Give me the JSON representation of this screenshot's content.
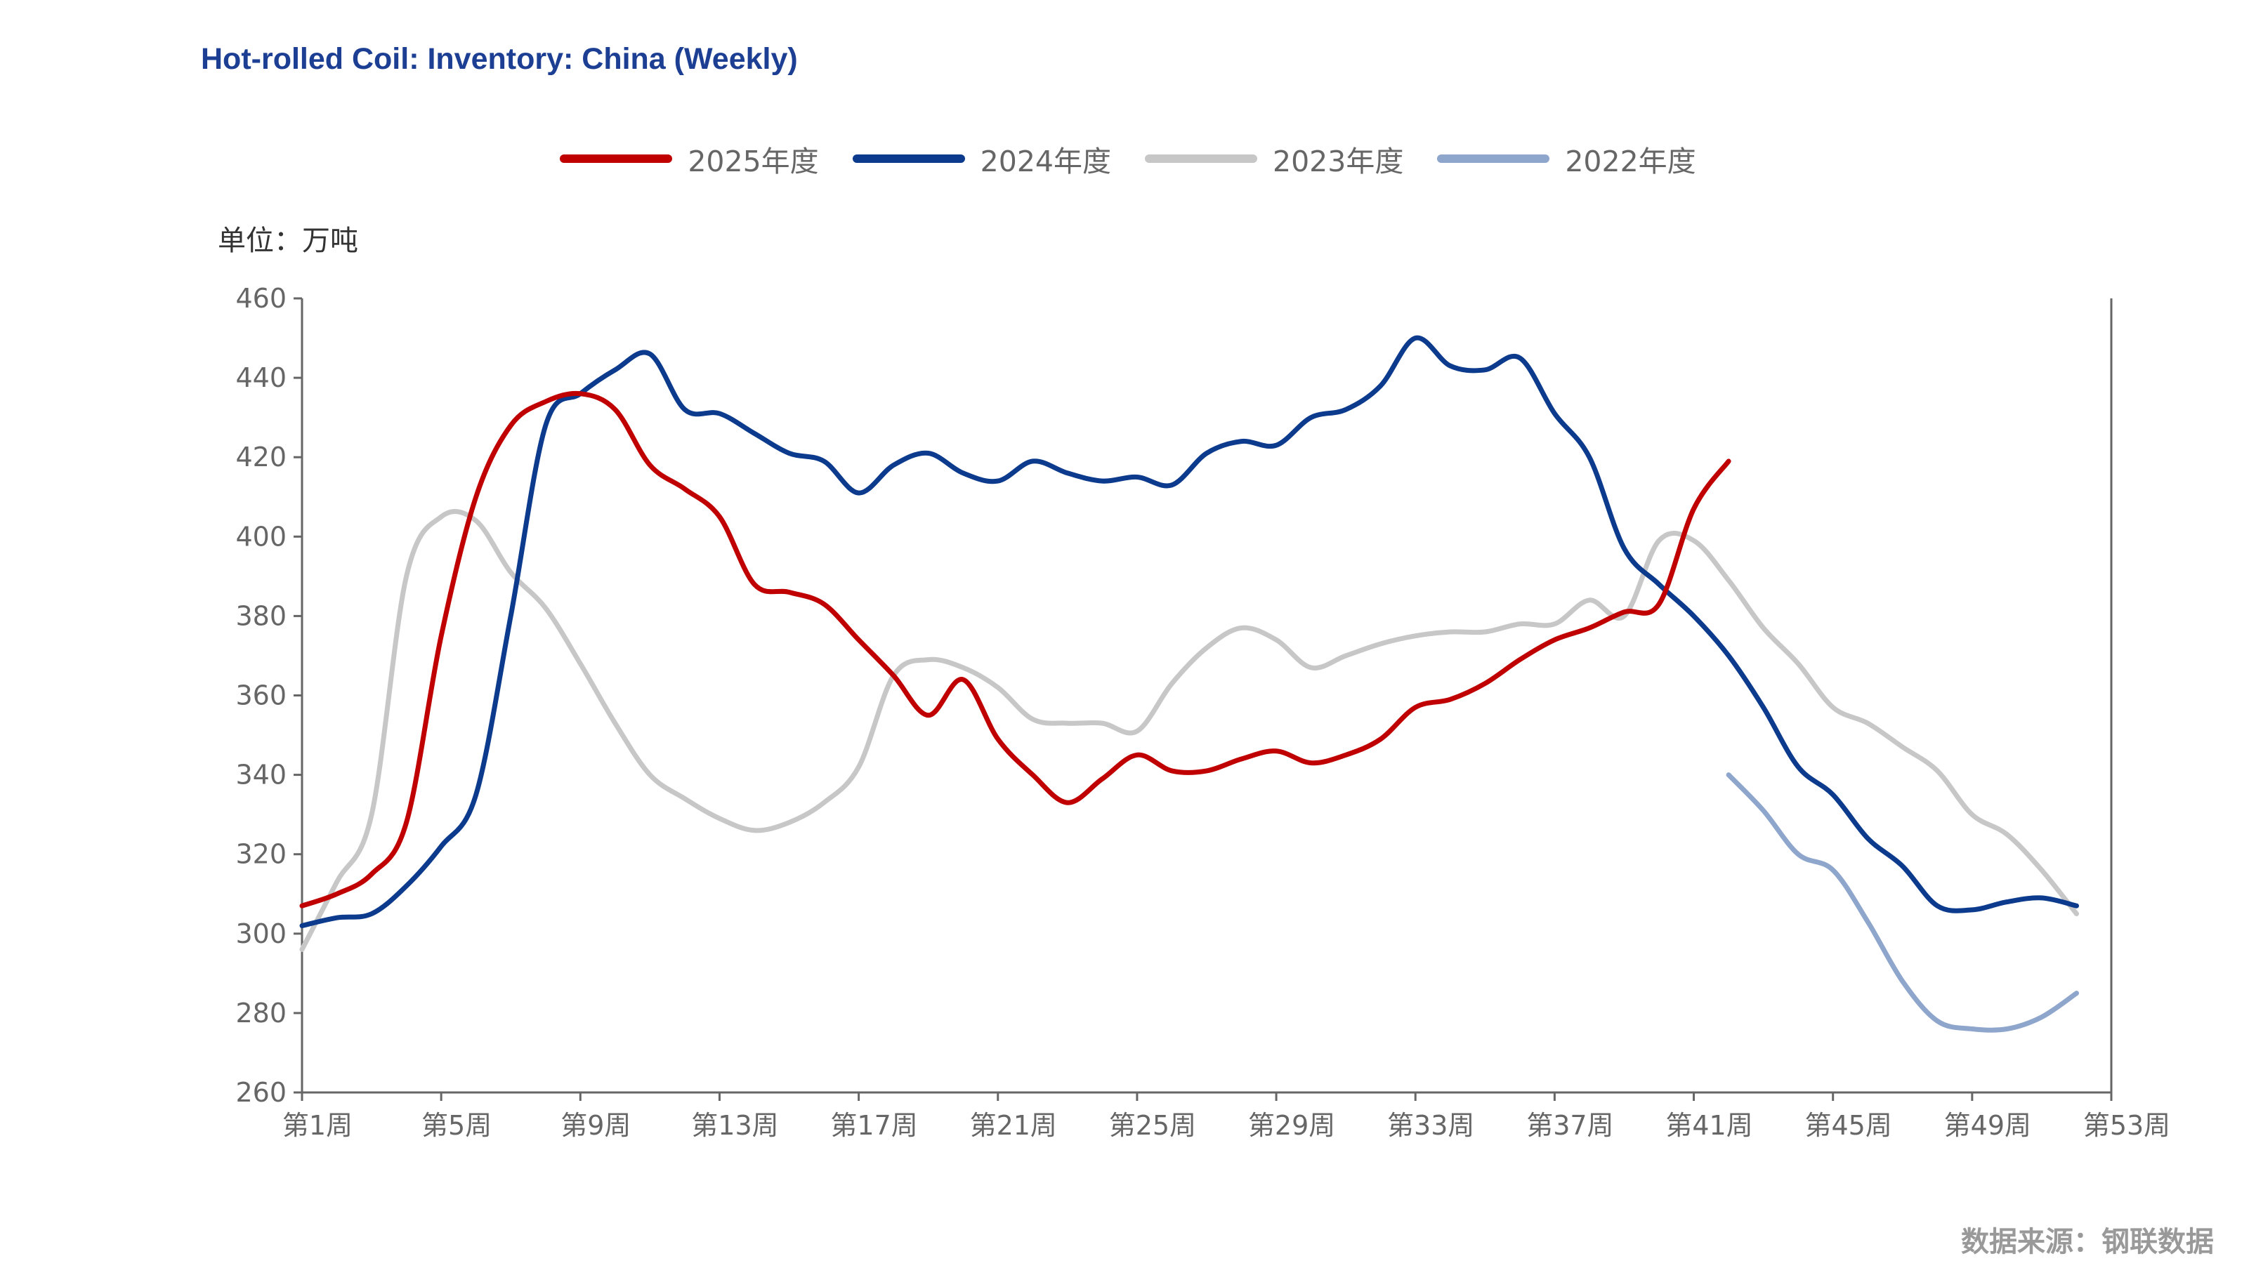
{
  "chart_data": {
    "type": "line",
    "title": "Hot-rolled Coil: Inventory: China (Weekly)",
    "unit_label": "单位：万吨",
    "source": "数据来源：钢联数据",
    "xlabel": "",
    "ylabel": "",
    "ylim": [
      260,
      460
    ],
    "yticks": [
      260,
      280,
      300,
      320,
      340,
      360,
      380,
      400,
      420,
      440,
      460
    ],
    "xlim": [
      1,
      53
    ],
    "xticks": [
      1,
      5,
      9,
      13,
      17,
      21,
      25,
      29,
      33,
      37,
      41,
      45,
      49,
      53
    ],
    "xtick_labels": [
      "第1周",
      "第5周",
      "第9周",
      "第13周",
      "第17周",
      "第21周",
      "第25周",
      "第29周",
      "第33周",
      "第37周",
      "第41周",
      "第45周",
      "第49周",
      "第53周"
    ],
    "grid": false,
    "legend_position": "top-center",
    "series": [
      {
        "name": "2025年度",
        "color": "#c00000",
        "x": [
          1,
          2,
          3,
          4,
          5,
          6,
          7,
          8,
          9,
          10,
          11,
          12,
          13,
          14,
          15,
          16,
          17,
          18,
          19,
          20,
          21,
          22,
          23,
          24,
          25,
          26,
          27,
          28,
          29,
          30,
          31,
          32,
          33,
          34,
          35,
          36,
          37,
          38,
          39,
          40,
          41,
          42
        ],
        "values": [
          307,
          310,
          315,
          328,
          375,
          410,
          428,
          434,
          436,
          432,
          418,
          412,
          405,
          388,
          386,
          383,
          374,
          365,
          355,
          364,
          349,
          340,
          333,
          339,
          345,
          341,
          341,
          344,
          346,
          343,
          345,
          349,
          357,
          359,
          363,
          369,
          374,
          377,
          381,
          383,
          407,
          419
        ]
      },
      {
        "name": "2024年度",
        "color": "#0c3a8c",
        "x": [
          1,
          2,
          3,
          4,
          5,
          6,
          7,
          8,
          9,
          10,
          11,
          12,
          13,
          14,
          15,
          16,
          17,
          18,
          19,
          20,
          21,
          22,
          23,
          24,
          25,
          26,
          27,
          28,
          29,
          30,
          31,
          32,
          33,
          34,
          35,
          36,
          37,
          38,
          39,
          40,
          41,
          42,
          43,
          44,
          45,
          46,
          47,
          48,
          49,
          50,
          51,
          52
        ],
        "values": [
          302,
          304,
          305,
          312,
          322,
          335,
          380,
          428,
          436,
          442,
          446,
          432,
          431,
          426,
          421,
          419,
          411,
          418,
          421,
          416,
          414,
          419,
          416,
          414,
          415,
          413,
          421,
          424,
          423,
          430,
          432,
          438,
          450,
          443,
          442,
          445,
          431,
          420,
          397,
          388,
          380,
          370,
          357,
          342,
          335,
          324,
          317,
          307,
          306,
          308,
          309,
          307
        ]
      },
      {
        "name": "2023年度",
        "color": "#c7c7c7",
        "x": [
          1,
          2,
          3,
          4,
          5,
          6,
          7,
          8,
          9,
          10,
          11,
          12,
          13,
          14,
          15,
          16,
          17,
          18,
          19,
          20,
          21,
          22,
          23,
          24,
          25,
          26,
          27,
          28,
          29,
          30,
          31,
          32,
          33,
          34,
          35,
          36,
          37,
          38,
          39,
          40,
          41,
          42,
          43,
          44,
          45,
          46,
          47,
          48,
          49,
          50,
          51,
          52
        ],
        "values": [
          296,
          313,
          330,
          390,
          405,
          404,
          391,
          382,
          368,
          353,
          340,
          334,
          329,
          326,
          328,
          333,
          342,
          365,
          369,
          367,
          362,
          354,
          353,
          353,
          351,
          363,
          372,
          377,
          374,
          367,
          370,
          373,
          375,
          376,
          376,
          378,
          378,
          384,
          380,
          399,
          399,
          389,
          377,
          368,
          357,
          353,
          347,
          341,
          330,
          325,
          316,
          305
        ]
      },
      {
        "name": "2022年度",
        "color": "#8ea5cc",
        "x": [
          42,
          43,
          44,
          45,
          46,
          47,
          48,
          49,
          50,
          51,
          52
        ],
        "values": [
          340,
          331,
          320,
          316,
          303,
          288,
          278,
          276,
          276,
          279,
          285
        ]
      }
    ]
  }
}
